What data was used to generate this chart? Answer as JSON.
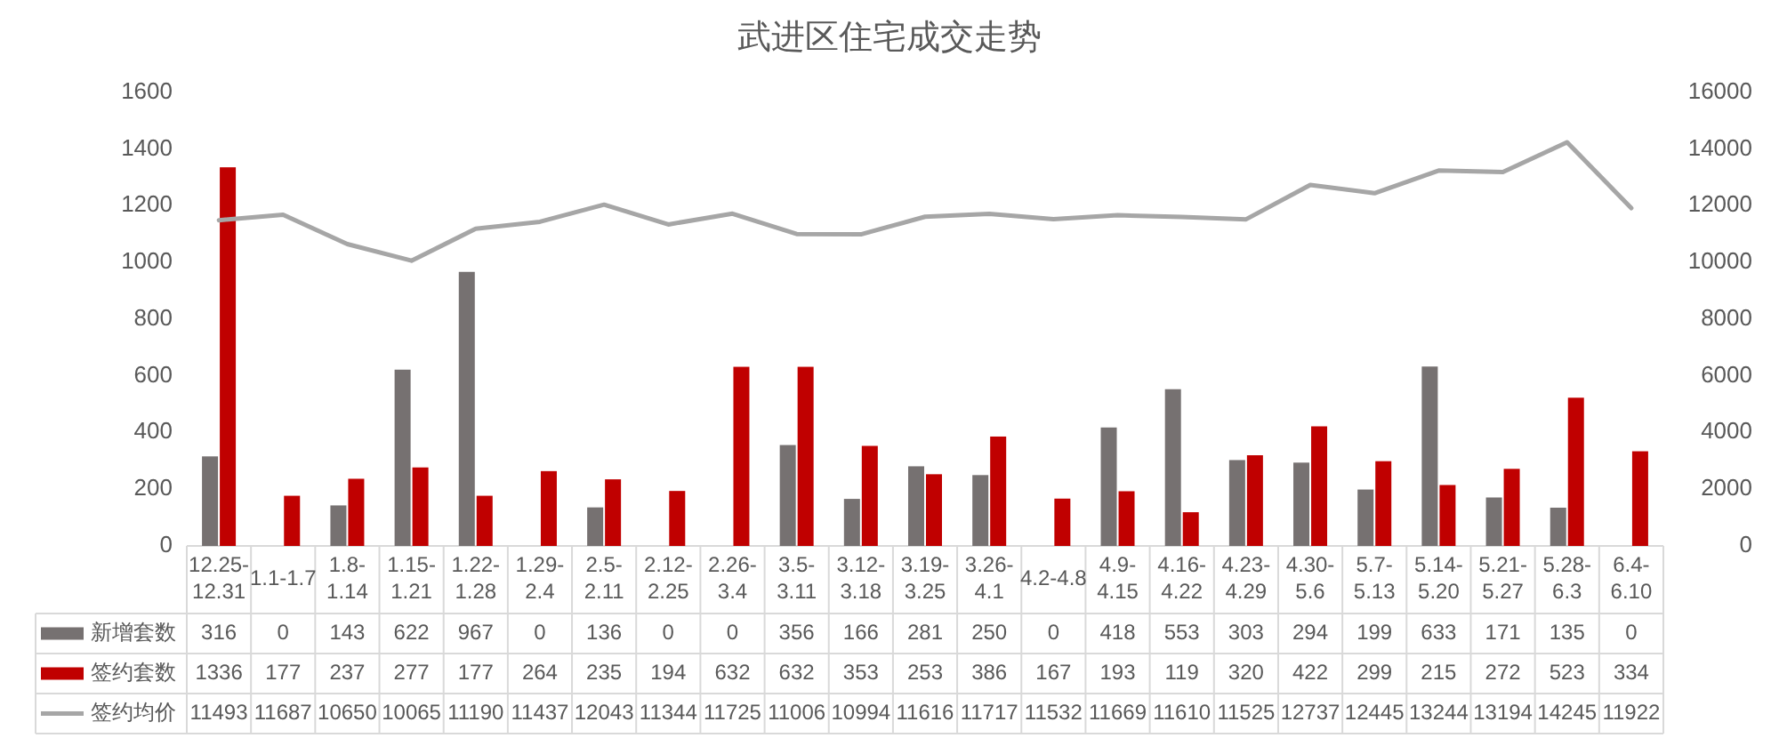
{
  "chart_data": {
    "type": "bar",
    "title": "武进区住宅成交走势",
    "categories": [
      "12.25-12.31",
      "1.1-1.7",
      "1.8-1.14",
      "1.15-1.21",
      "1.22-1.28",
      "1.29-2.4",
      "2.5-2.11",
      "2.12-2.25",
      "2.26-3.4",
      "3.5-3.11",
      "3.12-3.18",
      "3.19-3.25",
      "3.26-4.1",
      "4.2-4.8",
      "4.9-4.15",
      "4.16-4.22",
      "4.23-4.29",
      "4.30-5.6",
      "5.7-5.13",
      "5.14-5.20",
      "5.21-5.27",
      "5.28-6.3",
      "6.4-6.10"
    ],
    "series": [
      {
        "name": "新增套数",
        "color": "#767171",
        "values": [
          316,
          0,
          143,
          622,
          967,
          0,
          136,
          0,
          0,
          356,
          166,
          281,
          250,
          0,
          418,
          553,
          303,
          294,
          199,
          633,
          171,
          135,
          0
        ]
      },
      {
        "name": "签约套数",
        "color": "#c00000",
        "values": [
          1336,
          177,
          237,
          277,
          177,
          264,
          235,
          194,
          632,
          632,
          353,
          253,
          386,
          167,
          193,
          119,
          320,
          422,
          299,
          215,
          272,
          523,
          334
        ]
      },
      {
        "name": "签约均价",
        "color": "#a6a6a6",
        "type": "line",
        "axis": "y2",
        "values": [
          11493,
          11687,
          10650,
          10065,
          11190,
          11437,
          12043,
          11344,
          11725,
          11006,
          10994,
          11616,
          11717,
          11532,
          11669,
          11610,
          11525,
          12737,
          12445,
          13244,
          13194,
          14245,
          11922
        ]
      }
    ],
    "ylim": [
      0,
      1600
    ],
    "yticks": [
      0,
      200,
      400,
      600,
      800,
      1000,
      1200,
      1400,
      1600
    ],
    "y2lim": [
      0,
      16000
    ],
    "y2ticks": [
      0,
      2000,
      4000,
      6000,
      8000,
      10000,
      12000,
      14000,
      16000
    ],
    "data_labels": true,
    "legend": "bottom",
    "grid": false
  }
}
